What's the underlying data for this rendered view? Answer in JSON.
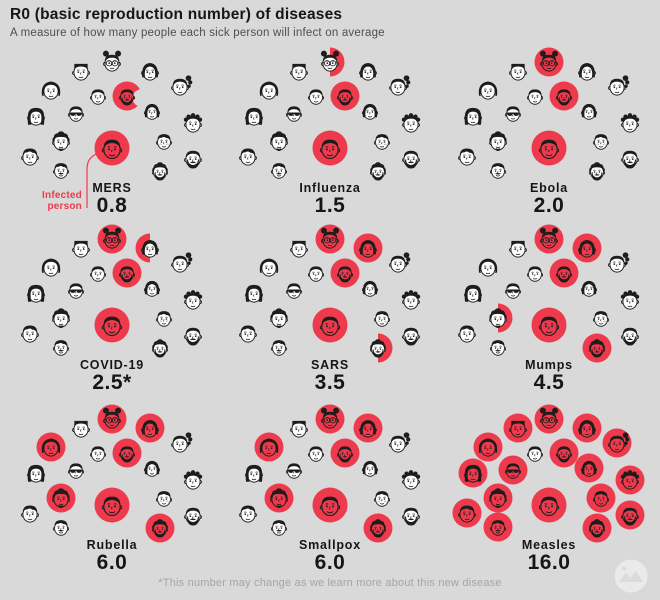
{
  "header": {
    "title": "R0 (basic reproduction number) of diseases",
    "subtitle": "A measure of how many people each sick person will infect on average"
  },
  "annotation": {
    "line1": "Infected",
    "line2": "person"
  },
  "footnote": "*This number may change as we learn more about this new disease",
  "colors": {
    "background": "#d9d9d9",
    "accent_red": "#ee3a4d",
    "ink": "#1d1d1b",
    "skin": "#fdfdfd",
    "title_ink": "#161616",
    "subtitle_gray": "#4f4f4f",
    "footnote_gray": "#a5a5a5"
  },
  "chart_data": {
    "type": "pictogram",
    "title": "R0 (basic reproduction number) of diseases",
    "subtitle": "A measure of how many people each sick person will infect on average",
    "categories": [
      "MERS",
      "Influenza",
      "Ebola",
      "COVID-19",
      "SARS",
      "Mumps",
      "Rubella",
      "Smallpox",
      "Measles"
    ],
    "values": [
      0.8,
      1.5,
      2.0,
      2.5,
      3.5,
      4.5,
      6.0,
      6.0,
      16.0
    ],
    "value_labels": [
      "0.8",
      "1.5",
      "2.0",
      "2.5*",
      "3.5",
      "4.5",
      "6.0",
      "6.0",
      "16.0"
    ],
    "note": "*This number may change as we learn more about this new disease",
    "legend": "Each panel: one infected person (center, red) and the average number of people they infect (red-circled faces); fractions shown as partial circles",
    "layout": "3x3 grid of fan pictograms, 17 surrounding faces per panel"
  },
  "panels": [
    {
      "disease": "MERS",
      "value": "0.8",
      "r0": 0.8,
      "infected_center": true,
      "infected_full": [],
      "infected_partial": [
        {
          "face": 14,
          "shape": "bite-right",
          "fraction": 0.8
        }
      ]
    },
    {
      "disease": "Influenza",
      "value": "1.5",
      "r0": 1.5,
      "infected_center": true,
      "infected_full": [
        14
      ],
      "infected_partial": [
        {
          "face": 6,
          "shape": "half-right",
          "fraction": 0.5
        }
      ]
    },
    {
      "disease": "Ebola",
      "value": "2.0",
      "r0": 2.0,
      "infected_center": true,
      "infected_full": [
        6,
        14
      ],
      "infected_partial": []
    },
    {
      "disease": "COVID-19",
      "value": "2.5*",
      "r0": 2.5,
      "infected_center": true,
      "infected_full": [
        6,
        14
      ],
      "infected_partial": [
        {
          "face": 7,
          "shape": "half-left",
          "fraction": 0.5
        }
      ]
    },
    {
      "disease": "SARS",
      "value": "3.5",
      "r0": 3.5,
      "infected_center": true,
      "infected_full": [
        6,
        7,
        14
      ],
      "infected_partial": [
        {
          "face": 17,
          "shape": "half-right",
          "fraction": 0.5
        }
      ]
    },
    {
      "disease": "Mumps",
      "value": "4.5",
      "r0": 4.5,
      "infected_center": true,
      "infected_full": [
        6,
        7,
        14,
        17
      ],
      "infected_partial": [
        {
          "face": 2,
          "shape": "half-right",
          "fraction": 0.5
        }
      ]
    },
    {
      "disease": "Rubella",
      "value": "6.0",
      "r0": 6.0,
      "infected_center": true,
      "infected_full": [
        2,
        4,
        6,
        7,
        14,
        17
      ],
      "infected_partial": []
    },
    {
      "disease": "Smallpox",
      "value": "6.0",
      "r0": 6.0,
      "infected_center": true,
      "infected_full": [
        2,
        4,
        6,
        7,
        14,
        17
      ],
      "infected_partial": []
    },
    {
      "disease": "Measles",
      "value": "16.0",
      "r0": 16.0,
      "infected_center": true,
      "infected_full": [
        1,
        2,
        3,
        4,
        5,
        6,
        7,
        8,
        9,
        10,
        11,
        12,
        14,
        15,
        16,
        17
      ],
      "infected_partial": []
    }
  ],
  "faces": {
    "center": "infected-person-icon",
    "surrounding": [
      "boy-wavy-hair-icon",
      "man-curly-goatee-icon",
      "woman-long-hair-icon",
      "woman-big-bob-icon",
      "man-flattop-icon",
      "person-buns-glasses-icon",
      "woman-bob-icon",
      "woman-ponytail-icon",
      "woman-curly-icon",
      "man-full-beard-icon",
      "man-mustache-icon",
      "man-sunglasses-icon",
      "man-short-hair-icon",
      "man-beard-icon",
      "woman-wavy-bob-icon",
      "boy-freckles-icon",
      "man-dark-beard-icon"
    ]
  },
  "logo": {
    "name": "publisher-logo"
  }
}
